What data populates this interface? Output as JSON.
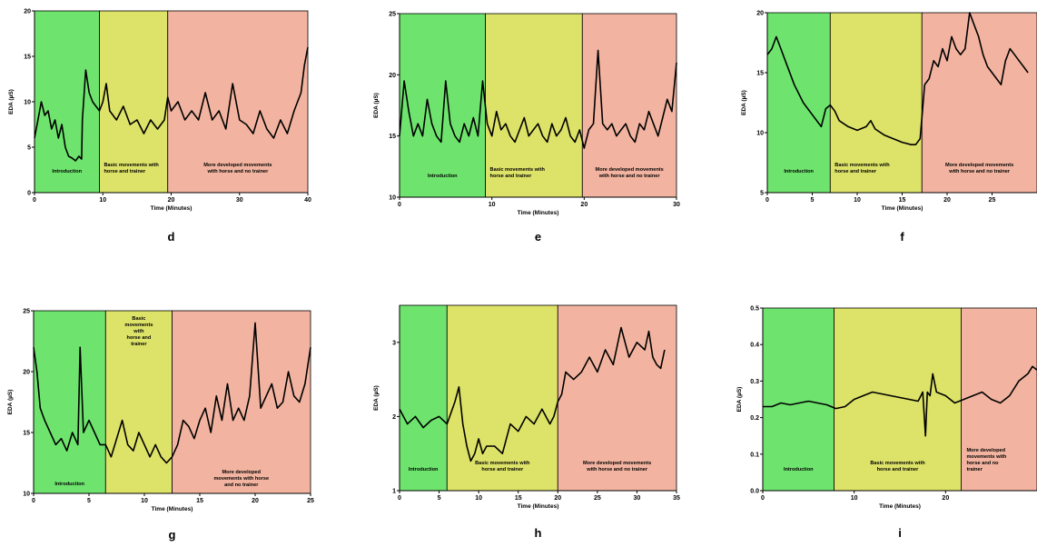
{
  "colors": {
    "introduction": "#6ee46e",
    "basic": "#dde268",
    "developed": "#f2b4a0",
    "trace": "#000000"
  },
  "chart_data": [
    {
      "type": "line",
      "letter": "d",
      "ylabel": "EDA (µS)",
      "xlabel": "Time (Minutes)",
      "xlim": [
        0,
        40
      ],
      "ylim": [
        0,
        20
      ],
      "xticks": [
        0,
        10,
        20,
        30,
        40
      ],
      "yticks": [
        0,
        5,
        10,
        15,
        20
      ],
      "phases": [
        {
          "key": "introduction",
          "start": 0,
          "end": 9.5,
          "label": [
            "Introduction"
          ]
        },
        {
          "key": "basic",
          "start": 9.5,
          "end": 19.5,
          "label": [
            "Basic movements with",
            "horse and trainer"
          ]
        },
        {
          "key": "developed",
          "start": 19.5,
          "end": 40,
          "label": [
            "More developed movements",
            "with horse and no trainer"
          ]
        }
      ],
      "series": {
        "x": [
          0,
          0.5,
          1,
          1.5,
          2,
          2.5,
          3,
          3.5,
          4,
          4.5,
          5,
          5.5,
          6,
          6.5,
          6.9,
          7,
          7.5,
          8,
          8.5,
          9,
          9.5,
          10,
          10.5,
          11,
          12,
          13,
          14,
          15,
          16,
          17,
          18,
          19,
          19.5,
          20,
          21,
          22,
          23,
          24,
          25,
          26,
          27,
          28,
          29,
          30,
          31,
          32,
          33,
          34,
          35,
          36,
          37,
          38,
          39,
          39.5,
          40
        ],
        "y": [
          6,
          8,
          10,
          8.5,
          9,
          7,
          8,
          6,
          7.5,
          5,
          4,
          3.8,
          3.5,
          4,
          3.7,
          8,
          13.5,
          11,
          10,
          9.5,
          9,
          10,
          12,
          9,
          8,
          9.5,
          7.5,
          8,
          6.5,
          8,
          7,
          8,
          10.5,
          9,
          10,
          8,
          9,
          8,
          11,
          8,
          9,
          7,
          12,
          8,
          7.5,
          6.5,
          9,
          7,
          6,
          8,
          6.5,
          9,
          11,
          14,
          16
        ]
      }
    },
    {
      "type": "line",
      "letter": "e",
      "ylabel": "EDA (µS)",
      "xlabel": "Time (Minutes)",
      "xlim": [
        0,
        30
      ],
      "ylim": [
        10,
        25
      ],
      "xticks": [
        0,
        10,
        20,
        30
      ],
      "yticks": [
        10,
        15,
        20,
        25
      ],
      "phases": [
        {
          "key": "introduction",
          "start": 0,
          "end": 9.3,
          "label": [
            "Introduction"
          ]
        },
        {
          "key": "basic",
          "start": 9.3,
          "end": 19.8,
          "label": [
            "Basic movements with",
            "horse and trainer"
          ]
        },
        {
          "key": "developed",
          "start": 19.8,
          "end": 30,
          "label": [
            "More developed movements",
            "with horse and no trainer"
          ]
        }
      ],
      "series": {
        "x": [
          0,
          0.5,
          1,
          1.5,
          2,
          2.5,
          3,
          3.5,
          4,
          4.5,
          5,
          5.5,
          6,
          6.5,
          7,
          7.5,
          8,
          8.5,
          9,
          9.5,
          10,
          10.5,
          11,
          11.5,
          12,
          12.5,
          13,
          13.5,
          14,
          14.5,
          15,
          15.5,
          16,
          16.5,
          17,
          17.5,
          18,
          18.5,
          19,
          19.5,
          20,
          20.5,
          21,
          21.5,
          22,
          22.5,
          23,
          23.5,
          24,
          24.5,
          25,
          25.5,
          26,
          26.5,
          27,
          27.5,
          28,
          28.5,
          29,
          29.5,
          30
        ],
        "y": [
          15,
          19.5,
          17,
          15,
          16,
          15,
          18,
          16,
          15,
          14.5,
          19.5,
          16,
          15,
          14.5,
          16,
          15,
          16.5,
          15,
          19.5,
          16,
          15,
          17,
          15.5,
          16,
          15,
          14.5,
          15.5,
          16.5,
          15,
          15.5,
          16,
          15,
          14.5,
          16,
          15,
          15.5,
          16.5,
          15,
          14.5,
          15.5,
          14,
          15.5,
          16,
          22,
          16,
          15.5,
          16,
          15,
          15.5,
          16,
          15,
          14.5,
          16,
          15.5,
          17,
          16,
          15,
          16.5,
          18,
          17,
          21
        ]
      }
    },
    {
      "type": "line",
      "letter": "f",
      "ylabel": "EDA (µS)",
      "xlabel": "Time (Minutes)",
      "xlim": [
        0,
        30
      ],
      "ylim": [
        5,
        20
      ],
      "xticks": [
        0,
        5,
        10,
        15,
        20,
        25,
        30
      ],
      "yticks": [
        5,
        10,
        15,
        20
      ],
      "phases": [
        {
          "key": "introduction",
          "start": 0,
          "end": 7,
          "label": [
            "Introduction"
          ]
        },
        {
          "key": "basic",
          "start": 7,
          "end": 17.2,
          "label": [
            "Basic movements with",
            "horse and trainer"
          ]
        },
        {
          "key": "developed",
          "start": 17.2,
          "end": 30,
          "label": [
            "More developed movements",
            "with horse and no trainer"
          ]
        }
      ],
      "series": {
        "x": [
          0,
          0.5,
          1,
          1.5,
          2,
          3,
          4,
          5,
          6,
          6.5,
          7,
          7.5,
          8,
          9,
          10,
          11,
          11.5,
          12,
          13,
          14,
          15,
          16,
          16.5,
          17,
          17.5,
          18,
          18.5,
          19,
          19.5,
          20,
          20.5,
          21,
          21.5,
          22,
          22.5,
          23,
          23.5,
          24,
          24.5,
          25,
          25.5,
          26,
          26.5,
          27,
          27.5,
          28,
          28.5,
          29
        ],
        "y": [
          16.5,
          17,
          18,
          17,
          16,
          14,
          12.5,
          11.5,
          10.5,
          12,
          12.3,
          11.8,
          11,
          10.5,
          10.2,
          10.5,
          11,
          10.3,
          9.8,
          9.5,
          9.2,
          9,
          9,
          9.5,
          14,
          14.5,
          16,
          15.5,
          17,
          16,
          18,
          17,
          16.5,
          17,
          20,
          19,
          18,
          16.5,
          15.5,
          15,
          14.5,
          14,
          16,
          17,
          16.5,
          16,
          15.5,
          15
        ]
      }
    },
    {
      "type": "line",
      "letter": "g",
      "ylabel": "EDA (µS)",
      "xlabel": "Time (Minutes)",
      "xlim": [
        0,
        25
      ],
      "ylim": [
        10,
        25
      ],
      "xticks": [
        0,
        5,
        10,
        15,
        20,
        25
      ],
      "yticks": [
        10,
        15,
        20,
        25
      ],
      "phases": [
        {
          "key": "introduction",
          "start": 0,
          "end": 6.5,
          "label": [
            "Introduction"
          ]
        },
        {
          "key": "basic",
          "start": 6.5,
          "end": 12.5,
          "label": [
            "Basic",
            "movements",
            "with",
            "horse and",
            "trainer"
          ]
        },
        {
          "key": "developed",
          "start": 12.5,
          "end": 25,
          "label": [
            "More developed",
            "movements with horse",
            "and no trainer"
          ]
        }
      ],
      "series": {
        "x": [
          0,
          0.3,
          0.6,
          1,
          1.5,
          2,
          2.5,
          3,
          3.5,
          4,
          4.2,
          4.5,
          5,
          5.5,
          6,
          6.5,
          7,
          7.5,
          8,
          8.5,
          9,
          9.5,
          10,
          10.5,
          11,
          11.5,
          12,
          12.5,
          13,
          13.5,
          14,
          14.5,
          15,
          15.5,
          16,
          16.5,
          17,
          17.5,
          18,
          18.5,
          19,
          19.5,
          20,
          20.5,
          21,
          21.5,
          22,
          22.5,
          23,
          23.5,
          24,
          24.5,
          25
        ],
        "y": [
          22,
          20,
          17,
          16,
          15,
          14,
          14.5,
          13.5,
          15,
          14,
          22,
          15,
          16,
          15,
          14,
          14,
          13,
          14.5,
          16,
          14,
          13.5,
          15,
          14,
          13,
          14,
          13,
          12.5,
          13,
          14,
          16,
          15.5,
          14.5,
          16,
          17,
          15,
          18,
          16,
          19,
          16,
          17,
          16,
          18,
          24,
          17,
          18,
          19,
          17,
          17.5,
          20,
          18,
          17.5,
          19,
          22
        ]
      }
    },
    {
      "type": "line",
      "letter": "h",
      "ylabel": "EDA (µS)",
      "xlabel": "Time (Minutes)",
      "xlim": [
        0,
        35
      ],
      "ylim": [
        1,
        3.5
      ],
      "xticks": [
        0,
        5,
        10,
        15,
        20,
        25,
        30,
        35
      ],
      "yticks": [
        1,
        2,
        3
      ],
      "phases": [
        {
          "key": "introduction",
          "start": 0,
          "end": 6,
          "label": [
            "Introduction"
          ]
        },
        {
          "key": "basic",
          "start": 6,
          "end": 20,
          "label": [
            "Basic movements with",
            "horse and trainer"
          ]
        },
        {
          "key": "developed",
          "start": 20,
          "end": 35,
          "label": [
            "More developed movements",
            "with horse and no trainer"
          ]
        }
      ],
      "series": {
        "x": [
          0,
          1,
          2,
          3,
          4,
          5,
          6,
          7,
          7.5,
          8,
          8.5,
          9,
          9.5,
          10,
          10.5,
          11,
          12,
          13,
          14,
          15,
          16,
          17,
          18,
          19,
          19.5,
          20,
          20.5,
          21,
          22,
          23,
          24,
          25,
          26,
          27,
          28,
          29,
          30,
          31,
          31.5,
          32,
          32.5,
          33,
          33.5
        ],
        "y": [
          2.1,
          1.9,
          2,
          1.85,
          1.95,
          2,
          1.9,
          2.2,
          2.4,
          1.9,
          1.6,
          1.4,
          1.5,
          1.7,
          1.5,
          1.6,
          1.6,
          1.5,
          1.9,
          1.8,
          2,
          1.9,
          2.1,
          1.9,
          2,
          2.2,
          2.3,
          2.6,
          2.5,
          2.6,
          2.8,
          2.6,
          2.9,
          2.7,
          3.2,
          2.8,
          3,
          2.9,
          3.15,
          2.8,
          2.7,
          2.65,
          2.9
        ]
      }
    },
    {
      "type": "line",
      "letter": "i",
      "ylabel": "EDA (µS)",
      "xlabel": "Time (Minutes)",
      "xlim": [
        0,
        30
      ],
      "ylim": [
        0,
        0.5
      ],
      "xticks": [
        0,
        10,
        20,
        30
      ],
      "yticks": [
        0.0,
        0.1,
        0.2,
        0.3,
        0.4,
        0.5
      ],
      "phases": [
        {
          "key": "introduction",
          "start": 0,
          "end": 7.8,
          "label": [
            "Introduction"
          ]
        },
        {
          "key": "basic",
          "start": 7.8,
          "end": 21.7,
          "label": [
            "Basic movements with",
            "horse and trainer"
          ]
        },
        {
          "key": "developed",
          "start": 21.7,
          "end": 30,
          "label": [
            "More developed",
            "movements with",
            "horse and no",
            "trainer"
          ]
        }
      ],
      "series": {
        "x": [
          0,
          1,
          2,
          3,
          4,
          5,
          6,
          7,
          8,
          9,
          10,
          11,
          12,
          13,
          14,
          15,
          16,
          17,
          17.5,
          17.8,
          18,
          18.3,
          18.6,
          19,
          20,
          21,
          22,
          23,
          24,
          25,
          26,
          27,
          28,
          29,
          29.5,
          30
        ],
        "y": [
          0.23,
          0.23,
          0.24,
          0.235,
          0.24,
          0.245,
          0.24,
          0.235,
          0.225,
          0.23,
          0.25,
          0.26,
          0.27,
          0.265,
          0.26,
          0.255,
          0.25,
          0.245,
          0.27,
          0.15,
          0.27,
          0.26,
          0.32,
          0.27,
          0.26,
          0.24,
          0.25,
          0.26,
          0.27,
          0.25,
          0.24,
          0.26,
          0.3,
          0.32,
          0.34,
          0.33
        ]
      }
    }
  ]
}
